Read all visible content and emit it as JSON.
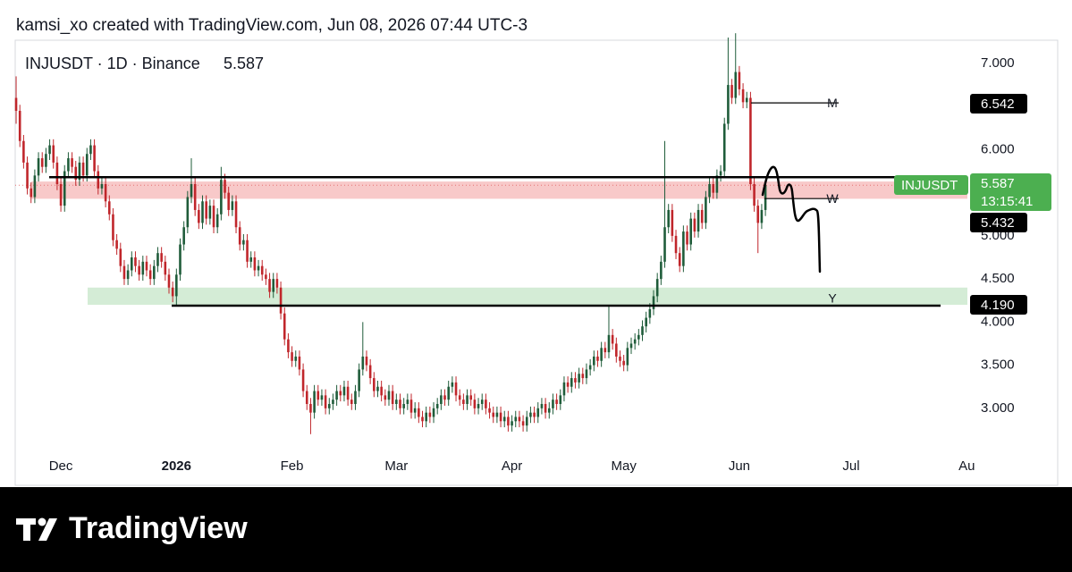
{
  "credit": "kamsi_xo created with TradingView.com, Jun 08, 2026 07:44 UTC-3",
  "watermark": "TradingView",
  "chart_data": {
    "type": "candlestick",
    "title": "INJUSDT · 1D · Binance",
    "symbol": "INJUSDT",
    "countdown": "13:15:41",
    "up_color": "#1f5c3a",
    "down_color": "#c0262b",
    "xlim": [
      -0.25,
      255.9
    ],
    "xticks": [
      {
        "value": 12,
        "label": "Dec"
      },
      {
        "value": 43,
        "label": "2026"
      },
      {
        "value": 74,
        "label": "Feb"
      },
      {
        "value": 102,
        "label": "Mar"
      },
      {
        "value": 133,
        "label": "Apr"
      },
      {
        "value": 163,
        "label": "May"
      },
      {
        "value": 194,
        "label": "Jun"
      },
      {
        "value": 224,
        "label": "Jul"
      },
      {
        "value": 255,
        "label": "Au"
      }
    ],
    "ylim": [
      2.48,
      7.3
    ],
    "yticks": [
      {
        "value": 3,
        "label": "3.000"
      },
      {
        "value": 3.5,
        "label": "3.500"
      },
      {
        "value": 4,
        "label": "4.000"
      },
      {
        "value": 4.5,
        "label": "4.500"
      },
      {
        "value": 5,
        "label": "5.000"
      },
      {
        "value": 6,
        "label": "6.000"
      },
      {
        "value": 7,
        "label": "7.000"
      }
    ],
    "levels": [
      {
        "name": "M",
        "value": 6.542,
        "label": "6.542"
      },
      {
        "name": "W",
        "value": 5.432,
        "label": "5.432"
      },
      {
        "name": "Y",
        "value": 4.19,
        "label": "4.190"
      }
    ],
    "resistance": 5.68,
    "zones": [
      {
        "color": "#f8c9c9",
        "range": [
          5.43,
          5.63
        ]
      },
      {
        "color": "#d4ecd6",
        "range": [
          4.2,
          4.4
        ]
      }
    ],
    "candles": [
      [
        6.6,
        6.85,
        6.3,
        6.45
      ],
      [
        6.45,
        6.52,
        6.03,
        6.1
      ],
      [
        6.1,
        6.17,
        5.78,
        5.85
      ],
      [
        5.85,
        5.92,
        5.48,
        5.55
      ],
      [
        5.55,
        5.62,
        5.38,
        5.45
      ],
      [
        5.45,
        5.77,
        5.38,
        5.7
      ],
      [
        5.7,
        5.97,
        5.63,
        5.9
      ],
      [
        5.9,
        5.97,
        5.73,
        5.8
      ],
      [
        5.8,
        6.02,
        5.73,
        5.95
      ],
      [
        5.95,
        6.12,
        5.88,
        6.05
      ],
      [
        6.05,
        6.12,
        5.78,
        5.85
      ],
      [
        5.85,
        5.92,
        5.53,
        5.6
      ],
      [
        5.6,
        5.67,
        5.28,
        5.35
      ],
      [
        5.35,
        5.82,
        5.28,
        5.75
      ],
      [
        5.75,
        5.97,
        5.68,
        5.9
      ],
      [
        5.9,
        5.97,
        5.73,
        5.8
      ],
      [
        5.8,
        5.87,
        5.58,
        5.65
      ],
      [
        5.65,
        5.92,
        5.58,
        5.85
      ],
      [
        5.85,
        5.92,
        5.63,
        5.7
      ],
      [
        5.7,
        6.02,
        5.63,
        5.95
      ],
      [
        5.95,
        6.12,
        5.88,
        6.05
      ],
      [
        6.05,
        6.12,
        5.68,
        5.75
      ],
      [
        5.75,
        5.82,
        5.48,
        5.55
      ],
      [
        5.55,
        5.67,
        5.48,
        5.6
      ],
      [
        5.6,
        5.67,
        5.33,
        5.4
      ],
      [
        5.4,
        5.47,
        5.18,
        5.25
      ],
      [
        5.25,
        5.32,
        4.88,
        4.95
      ],
      [
        4.95,
        5.02,
        4.78,
        4.85
      ],
      [
        4.85,
        4.92,
        4.58,
        4.65
      ],
      [
        4.65,
        4.72,
        4.43,
        4.5
      ],
      [
        4.5,
        4.67,
        4.43,
        4.6
      ],
      [
        4.6,
        4.82,
        4.53,
        4.75
      ],
      [
        4.75,
        4.82,
        4.58,
        4.65
      ],
      [
        4.65,
        4.72,
        4.48,
        4.55
      ],
      [
        4.55,
        4.77,
        4.48,
        4.7
      ],
      [
        4.7,
        4.77,
        4.53,
        4.6
      ],
      [
        4.6,
        4.67,
        4.43,
        4.5
      ],
      [
        4.5,
        4.72,
        4.43,
        4.65
      ],
      [
        4.65,
        4.87,
        4.58,
        4.8
      ],
      [
        4.8,
        4.87,
        4.63,
        4.7
      ],
      [
        4.7,
        4.77,
        4.48,
        4.55
      ],
      [
        4.55,
        4.62,
        4.33,
        4.4
      ],
      [
        4.4,
        4.47,
        4.23,
        4.3
      ],
      [
        4.3,
        4.62,
        4.2,
        4.55
      ],
      [
        4.55,
        4.97,
        4.48,
        4.9
      ],
      [
        4.9,
        5.17,
        4.83,
        5.1
      ],
      [
        5.1,
        5.52,
        5.03,
        5.45
      ],
      [
        5.45,
        5.9,
        5.38,
        5.6
      ],
      [
        5.6,
        5.67,
        5.23,
        5.3
      ],
      [
        5.3,
        5.37,
        5.08,
        5.15
      ],
      [
        5.15,
        5.47,
        5.08,
        5.4
      ],
      [
        5.4,
        5.47,
        5.13,
        5.2
      ],
      [
        5.2,
        5.42,
        5.13,
        5.35
      ],
      [
        5.35,
        5.42,
        5.03,
        5.1
      ],
      [
        5.1,
        5.32,
        5.03,
        5.25
      ],
      [
        5.25,
        5.8,
        5.18,
        5.65
      ],
      [
        5.65,
        5.72,
        5.43,
        5.5
      ],
      [
        5.5,
        5.57,
        5.23,
        5.3
      ],
      [
        5.3,
        5.47,
        5.23,
        5.4
      ],
      [
        5.4,
        5.47,
        5.03,
        5.1
      ],
      [
        5.1,
        5.17,
        4.83,
        4.9
      ],
      [
        4.9,
        5.02,
        4.83,
        4.95
      ],
      [
        4.95,
        5.02,
        4.63,
        4.7
      ],
      [
        4.7,
        4.82,
        4.63,
        4.75
      ],
      [
        4.75,
        4.82,
        4.53,
        4.6
      ],
      [
        4.6,
        4.72,
        4.53,
        4.65
      ],
      [
        4.65,
        4.72,
        4.48,
        4.55
      ],
      [
        4.55,
        4.62,
        4.43,
        4.5
      ],
      [
        4.5,
        4.57,
        4.28,
        4.35
      ],
      [
        4.35,
        4.57,
        4.28,
        4.5
      ],
      [
        4.5,
        4.57,
        4.33,
        4.4
      ],
      [
        4.4,
        4.47,
        4.03,
        4.1
      ],
      [
        4.1,
        4.17,
        3.73,
        3.8
      ],
      [
        3.8,
        3.87,
        3.58,
        3.65
      ],
      [
        3.65,
        3.72,
        3.48,
        3.55
      ],
      [
        3.55,
        3.67,
        3.48,
        3.6
      ],
      [
        3.6,
        3.67,
        3.38,
        3.45
      ],
      [
        3.45,
        3.52,
        3.13,
        3.2
      ],
      [
        3.2,
        3.27,
        2.98,
        3.05
      ],
      [
        3.05,
        3.12,
        2.7,
        2.95
      ],
      [
        2.95,
        3.27,
        2.88,
        3.2
      ],
      [
        3.2,
        3.27,
        3.03,
        3.1
      ],
      [
        3.1,
        3.22,
        3.03,
        3.15
      ],
      [
        3.15,
        3.22,
        2.93,
        3.0
      ],
      [
        3.0,
        3.12,
        2.93,
        3.05
      ],
      [
        3.05,
        3.17,
        2.98,
        3.1
      ],
      [
        3.1,
        3.27,
        3.03,
        3.2
      ],
      [
        3.2,
        3.27,
        3.08,
        3.15
      ],
      [
        3.15,
        3.32,
        3.08,
        3.25
      ],
      [
        3.25,
        3.32,
        3.03,
        3.1
      ],
      [
        3.1,
        3.17,
        2.98,
        3.05
      ],
      [
        3.05,
        3.27,
        2.98,
        3.2
      ],
      [
        3.2,
        3.52,
        3.13,
        3.45
      ],
      [
        3.45,
        4.0,
        3.38,
        3.6
      ],
      [
        3.6,
        3.67,
        3.43,
        3.5
      ],
      [
        3.5,
        3.57,
        3.28,
        3.35
      ],
      [
        3.35,
        3.42,
        3.13,
        3.2
      ],
      [
        3.2,
        3.32,
        3.13,
        3.25
      ],
      [
        3.25,
        3.32,
        3.08,
        3.15
      ],
      [
        3.15,
        3.22,
        3.03,
        3.1
      ],
      [
        3.1,
        3.27,
        3.03,
        3.2
      ],
      [
        3.2,
        3.27,
        2.98,
        3.05
      ],
      [
        3.05,
        3.17,
        2.98,
        3.1
      ],
      [
        3.1,
        3.17,
        2.93,
        3.0
      ],
      [
        3.0,
        3.12,
        2.93,
        3.05
      ],
      [
        3.05,
        3.17,
        2.98,
        3.1
      ],
      [
        3.1,
        3.17,
        2.88,
        2.95
      ],
      [
        2.95,
        3.07,
        2.88,
        3.0
      ],
      [
        3.0,
        3.07,
        2.83,
        2.9
      ],
      [
        2.9,
        2.97,
        2.78,
        2.85
      ],
      [
        2.85,
        3.02,
        2.78,
        2.95
      ],
      [
        2.95,
        3.02,
        2.83,
        2.9
      ],
      [
        2.9,
        3.07,
        2.83,
        3.0
      ],
      [
        3.0,
        3.12,
        2.93,
        3.05
      ],
      [
        3.05,
        3.22,
        2.98,
        3.15
      ],
      [
        3.15,
        3.22,
        3.03,
        3.1
      ],
      [
        3.1,
        3.32,
        3.03,
        3.25
      ],
      [
        3.25,
        3.37,
        3.18,
        3.3
      ],
      [
        3.3,
        3.37,
        3.08,
        3.15
      ],
      [
        3.15,
        3.22,
        3.03,
        3.1
      ],
      [
        3.1,
        3.17,
        2.98,
        3.05
      ],
      [
        3.05,
        3.22,
        2.98,
        3.15
      ],
      [
        3.15,
        3.22,
        3.03,
        3.1
      ],
      [
        3.1,
        3.17,
        2.93,
        3.0
      ],
      [
        3.0,
        3.12,
        2.93,
        3.05
      ],
      [
        3.05,
        3.17,
        2.98,
        3.1
      ],
      [
        3.1,
        3.17,
        2.93,
        3.0
      ],
      [
        3.0,
        3.07,
        2.88,
        2.95
      ],
      [
        2.95,
        3.02,
        2.83,
        2.9
      ],
      [
        2.9,
        3.02,
        2.83,
        2.95
      ],
      [
        2.95,
        3.02,
        2.78,
        2.85
      ],
      [
        2.85,
        2.97,
        2.78,
        2.9
      ],
      [
        2.9,
        2.97,
        2.73,
        2.8
      ],
      [
        2.8,
        2.92,
        2.73,
        2.85
      ],
      [
        2.85,
        2.97,
        2.78,
        2.9
      ],
      [
        2.9,
        2.97,
        2.78,
        2.85
      ],
      [
        2.85,
        2.92,
        2.73,
        2.8
      ],
      [
        2.8,
        2.97,
        2.73,
        2.9
      ],
      [
        2.9,
        3.02,
        2.83,
        2.95
      ],
      [
        2.95,
        3.02,
        2.83,
        2.9
      ],
      [
        2.9,
        3.07,
        2.83,
        3.0
      ],
      [
        3.0,
        3.12,
        2.93,
        3.05
      ],
      [
        3.05,
        3.12,
        2.88,
        2.95
      ],
      [
        2.95,
        3.07,
        2.88,
        3.0
      ],
      [
        3.0,
        3.17,
        2.93,
        3.1
      ],
      [
        3.1,
        3.17,
        2.98,
        3.05
      ],
      [
        3.05,
        3.22,
        2.98,
        3.15
      ],
      [
        3.15,
        3.37,
        3.08,
        3.3
      ],
      [
        3.3,
        3.37,
        3.18,
        3.25
      ],
      [
        3.25,
        3.42,
        3.18,
        3.35
      ],
      [
        3.35,
        3.42,
        3.23,
        3.3
      ],
      [
        3.3,
        3.47,
        3.23,
        3.4
      ],
      [
        3.4,
        3.47,
        3.28,
        3.35
      ],
      [
        3.35,
        3.52,
        3.28,
        3.45
      ],
      [
        3.45,
        3.57,
        3.38,
        3.5
      ],
      [
        3.5,
        3.67,
        3.43,
        3.6
      ],
      [
        3.6,
        3.67,
        3.48,
        3.55
      ],
      [
        3.55,
        3.77,
        3.48,
        3.7
      ],
      [
        3.7,
        3.77,
        3.58,
        3.65
      ],
      [
        3.65,
        4.2,
        3.58,
        3.85
      ],
      [
        3.85,
        3.92,
        3.68,
        3.75
      ],
      [
        3.75,
        3.82,
        3.53,
        3.6
      ],
      [
        3.6,
        3.67,
        3.48,
        3.55
      ],
      [
        3.55,
        3.62,
        3.43,
        3.5
      ],
      [
        3.5,
        3.77,
        3.43,
        3.7
      ],
      [
        3.7,
        3.82,
        3.63,
        3.75
      ],
      [
        3.75,
        3.87,
        3.68,
        3.8
      ],
      [
        3.8,
        3.92,
        3.73,
        3.85
      ],
      [
        3.85,
        4.02,
        3.78,
        3.95
      ],
      [
        3.95,
        4.12,
        3.88,
        4.05
      ],
      [
        4.05,
        4.22,
        3.98,
        4.15
      ],
      [
        4.15,
        4.37,
        4.08,
        4.3
      ],
      [
        4.3,
        4.57,
        4.23,
        4.5
      ],
      [
        4.5,
        4.77,
        4.43,
        4.7
      ],
      [
        4.7,
        6.1,
        4.63,
        5.1
      ],
      [
        5.1,
        5.37,
        5.03,
        5.3
      ],
      [
        5.3,
        5.37,
        4.93,
        5.0
      ],
      [
        5.0,
        5.07,
        4.73,
        4.8
      ],
      [
        4.8,
        4.87,
        4.58,
        4.65
      ],
      [
        4.65,
        5.12,
        4.58,
        5.05
      ],
      [
        5.05,
        5.12,
        4.83,
        4.9
      ],
      [
        4.9,
        5.27,
        4.83,
        5.2
      ],
      [
        5.2,
        5.27,
        4.98,
        5.05
      ],
      [
        5.05,
        5.37,
        4.98,
        5.3
      ],
      [
        5.3,
        5.37,
        5.08,
        5.15
      ],
      [
        5.15,
        5.52,
        5.08,
        5.45
      ],
      [
        5.45,
        5.67,
        5.38,
        5.6
      ],
      [
        5.6,
        5.67,
        5.43,
        5.5
      ],
      [
        5.5,
        5.77,
        5.43,
        5.7
      ],
      [
        5.7,
        5.82,
        5.63,
        5.75
      ],
      [
        5.75,
        6.37,
        5.68,
        6.3
      ],
      [
        6.3,
        7.3,
        6.23,
        6.75
      ],
      [
        6.75,
        6.82,
        6.53,
        6.6
      ],
      [
        6.6,
        7.35,
        6.53,
        6.9
      ],
      [
        6.9,
        6.97,
        6.63,
        6.7
      ],
      [
        6.7,
        6.77,
        6.48,
        6.55
      ],
      [
        6.55,
        6.67,
        6.48,
        6.6
      ],
      [
        6.6,
        6.67,
        5.53,
        5.6
      ],
      [
        5.6,
        5.67,
        5.28,
        5.35
      ],
      [
        5.35,
        5.42,
        4.8,
        5.15
      ],
      [
        5.15,
        5.37,
        5.08,
        5.3
      ],
      [
        5.3,
        5.65,
        5.23,
        5.587
      ]
    ]
  }
}
